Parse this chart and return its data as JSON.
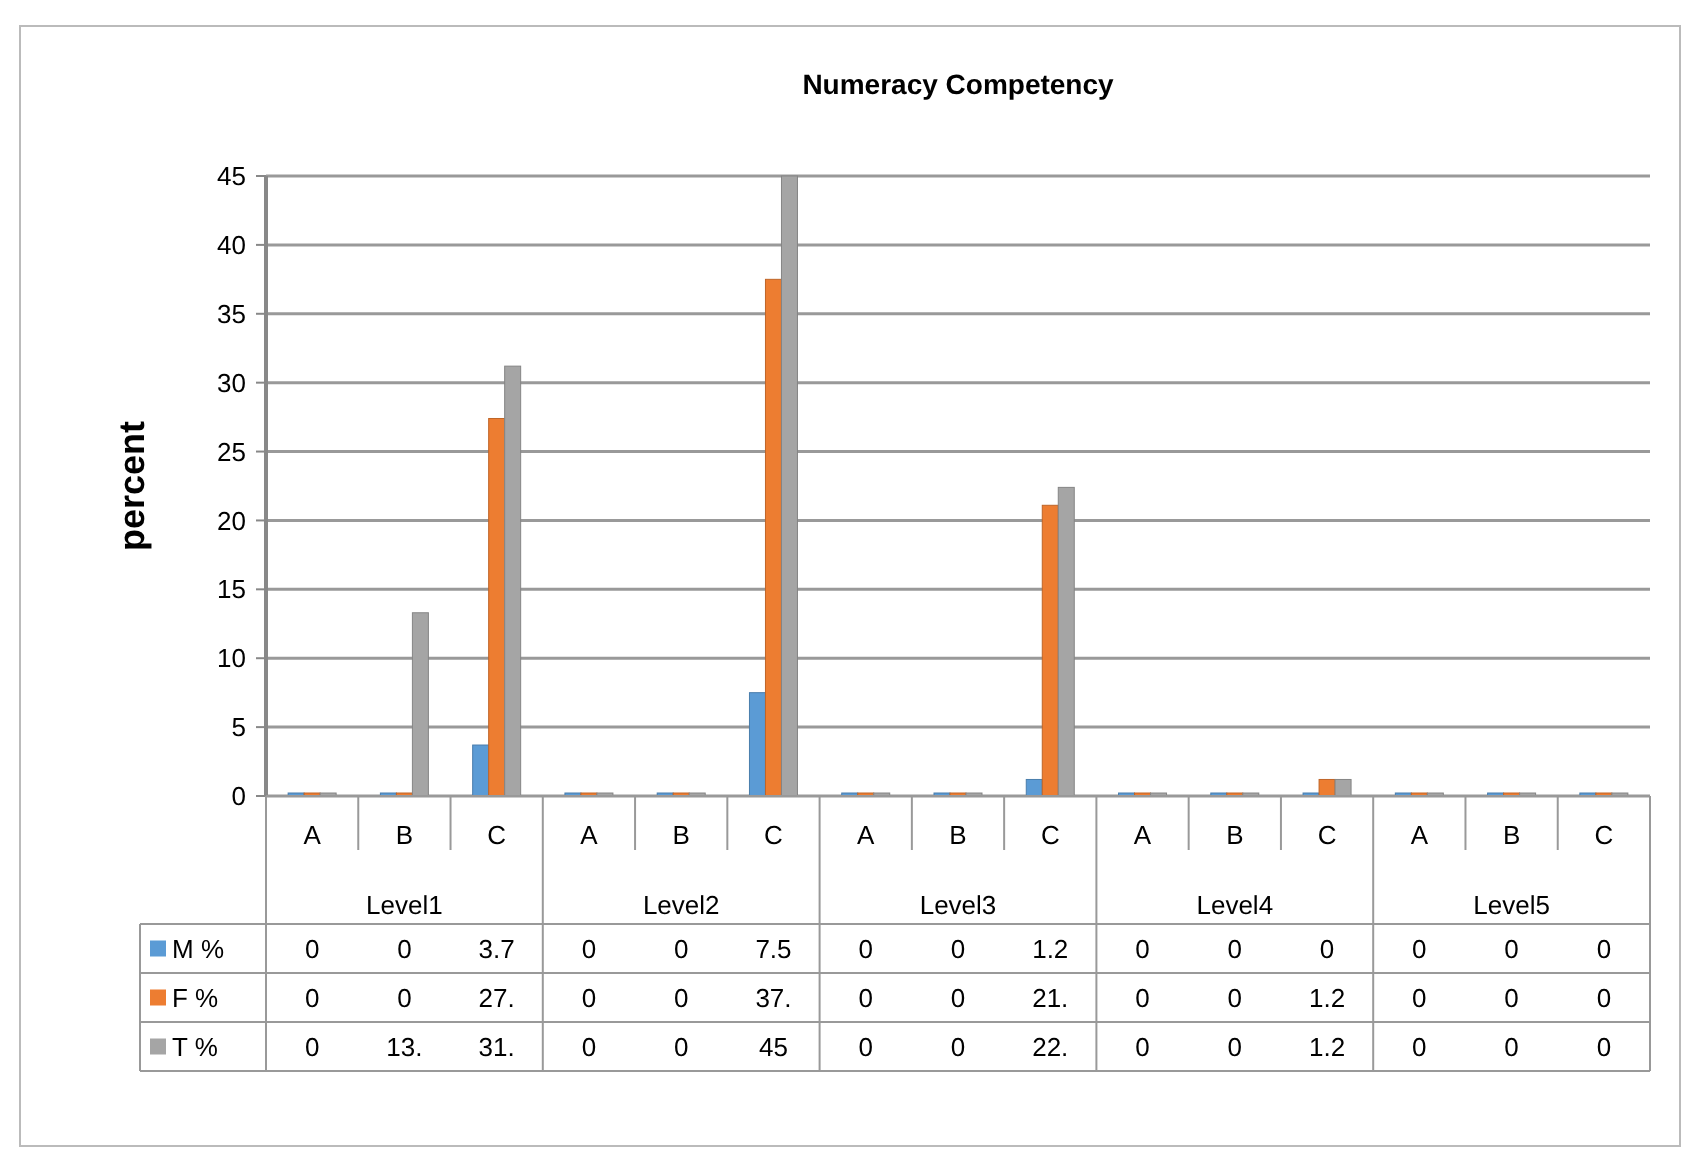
{
  "chart_data": {
    "type": "bar",
    "title": "Numeracy Competency",
    "ylabel": "percent",
    "categories": [
      "A",
      "B",
      "C",
      "A",
      "B",
      "C",
      "A",
      "B",
      "C",
      "A",
      "B",
      "C",
      "A",
      "B",
      "C"
    ],
    "annotations": [
      "Level1",
      "Level2",
      "Level3",
      "Level4",
      "Level5"
    ],
    "series": [
      {
        "name": "M %",
        "color": "#5b9bd5",
        "values": [
          0,
          0,
          3.7,
          0,
          0,
          7.5,
          0,
          0,
          1.2,
          0,
          0,
          0,
          0,
          0,
          0
        ],
        "value_labels": [
          "0",
          "0",
          "3.7",
          "0",
          "0",
          "7.5",
          "0",
          "0",
          "1.2",
          "0",
          "0",
          "0",
          "0",
          "0",
          "0"
        ]
      },
      {
        "name": "F %",
        "color": "#ed7d31",
        "values": [
          0,
          0,
          27.4,
          0,
          0,
          37.5,
          0,
          0,
          21.1,
          0,
          0,
          1.2,
          0,
          0,
          0
        ],
        "value_labels": [
          "0",
          "0",
          "27.",
          "0",
          "0",
          "37.",
          "0",
          "0",
          "21.",
          "0",
          "0",
          "1.2",
          "0",
          "0",
          "0"
        ]
      },
      {
        "name": "T %",
        "color": "#a5a5a5",
        "values": [
          0,
          13.3,
          31.2,
          0,
          0,
          45,
          0,
          0,
          22.4,
          0,
          0,
          1.2,
          0,
          0,
          0
        ],
        "value_labels": [
          "0",
          "13.",
          "31.",
          "0",
          "0",
          "45",
          "0",
          "0",
          "22.",
          "0",
          "0",
          "1.2",
          "0",
          "0",
          "0"
        ]
      }
    ],
    "ylim": [
      0,
      45
    ],
    "yticks": [
      0,
      5,
      10,
      15,
      20,
      25,
      30,
      35,
      40,
      45
    ],
    "grid": "y",
    "legend": "bottom"
  }
}
